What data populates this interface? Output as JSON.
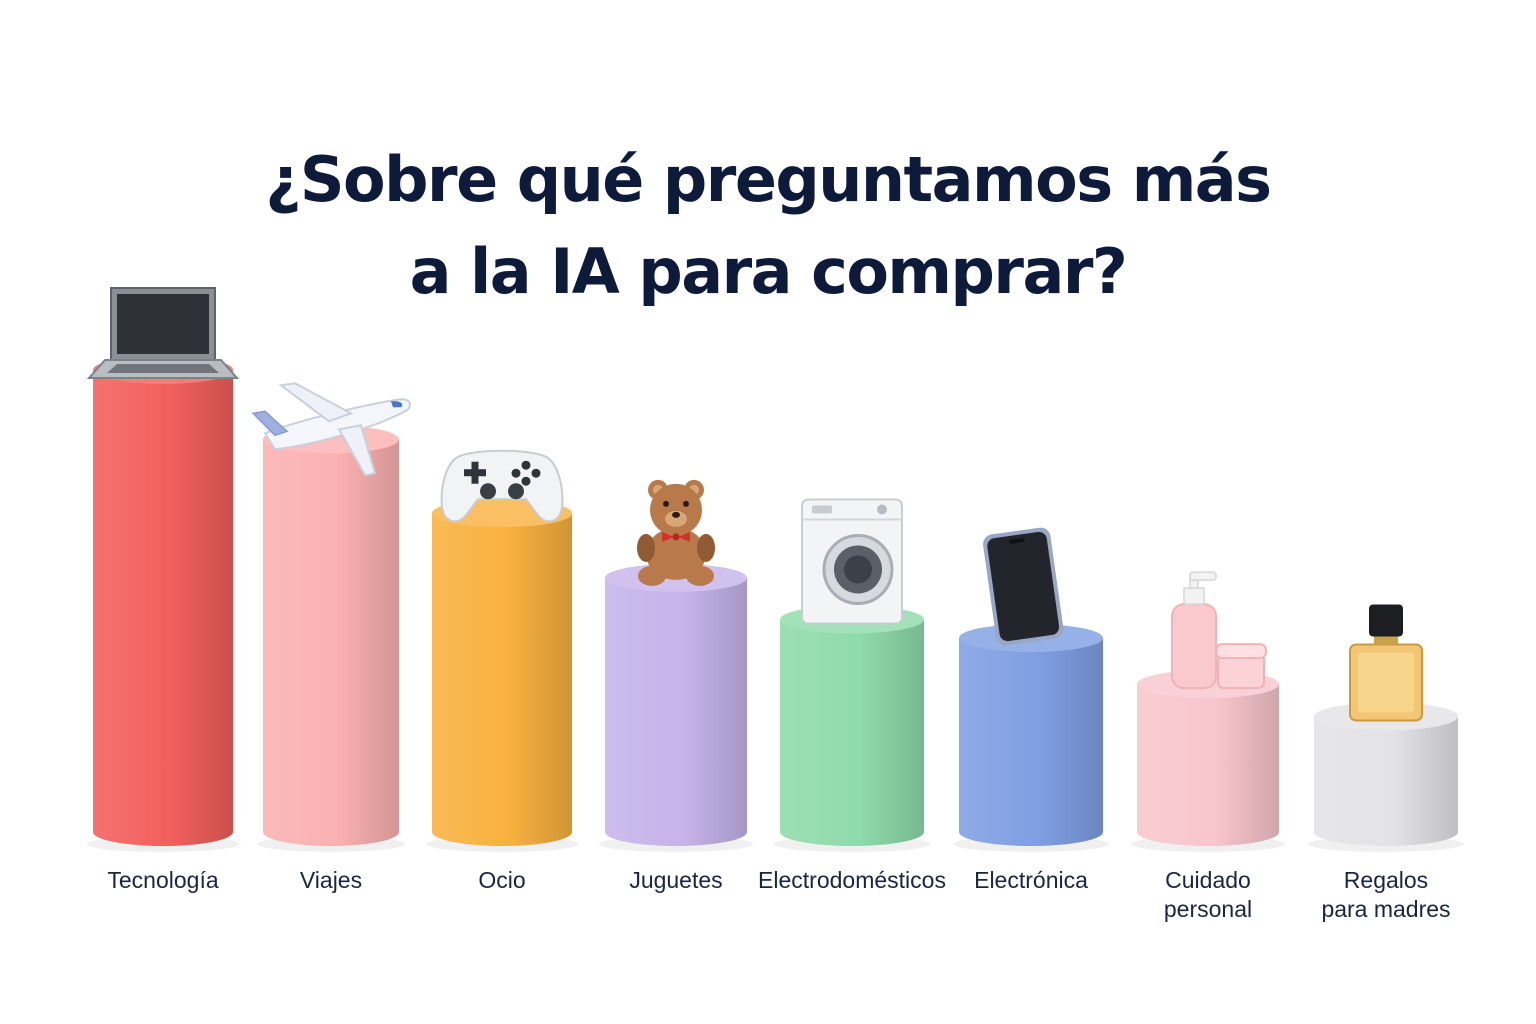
{
  "title_lines": [
    "¿Sobre qué preguntamos más",
    "a la IA para comprar?"
  ],
  "chart_data": {
    "type": "bar",
    "title": "¿Sobre qué preguntamos más a la IA para comprar?",
    "xlabel": "",
    "ylabel": "",
    "grid": false,
    "legend": "none",
    "ylim": [
      0,
      100
    ],
    "categories": [
      {
        "label": [
          "Tecnología"
        ],
        "value": 100,
        "color": "#f25f5c",
        "icon": "laptop-icon"
      },
      {
        "label": [
          "Viajes"
        ],
        "value": 85,
        "color": "#fbb1b1",
        "icon": "airplane-icon"
      },
      {
        "label": [
          "Ocio"
        ],
        "value": 69,
        "color": "#f8b13f",
        "icon": "gamepad-icon"
      },
      {
        "label": [
          "Juguetes"
        ],
        "value": 55,
        "color": "#c6b3ea",
        "icon": "teddy-bear-icon"
      },
      {
        "label": [
          "Electrodomésticos"
        ],
        "value": 46,
        "color": "#8fdbaa",
        "icon": "washing-machine-icon"
      },
      {
        "label": [
          "Electrónica"
        ],
        "value": 42,
        "color": "#7f9fe3",
        "icon": "smartphone-icon"
      },
      {
        "label": [
          "Cuidado",
          "personal"
        ],
        "value": 32,
        "color": "#f8c6cc",
        "icon": "cosmetics-icon"
      },
      {
        "label": [
          "Regalos",
          "para madres"
        ],
        "value": 25,
        "color": "#e3e3e6",
        "icon": "perfume-icon"
      }
    ]
  }
}
